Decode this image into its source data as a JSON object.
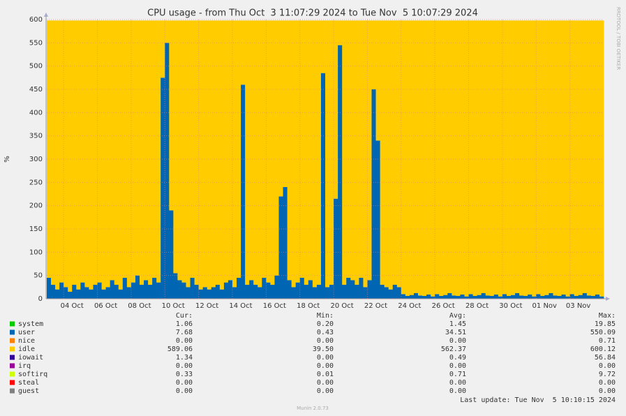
{
  "chart_data": {
    "type": "stacked_area",
    "title": "CPU usage - from Thu Oct  3 11:07:29 2024 to Tue Nov  5 10:07:29 2024",
    "y_label": "%",
    "watermark": "RRDTOOL / TOBI OETIKER",
    "footer": "Munin 2.0.73",
    "last_update": "Last update: Tue Nov  5 10:10:15 2024",
    "ylim": [
      0,
      600
    ],
    "yticks": [
      0,
      50,
      100,
      150,
      200,
      250,
      300,
      350,
      400,
      450,
      500,
      550,
      600
    ],
    "grid": true,
    "categories": [
      null,
      null,
      null,
      null,
      "04 Oct",
      null,
      null,
      null,
      null,
      null,
      null,
      null,
      "06 Oct",
      null,
      null,
      null,
      null,
      null,
      null,
      null,
      "08 Oct",
      null,
      null,
      null,
      null,
      null,
      null,
      null,
      "10 Oct",
      null,
      null,
      null,
      null,
      null,
      null,
      null,
      "12 Oct",
      null,
      null,
      null,
      null,
      null,
      null,
      null,
      "14 Oct",
      null,
      null,
      null,
      null,
      null,
      null,
      null,
      "16 Oct",
      null,
      null,
      null,
      null,
      null,
      null,
      null,
      "18 Oct",
      null,
      null,
      null,
      null,
      null,
      null,
      null,
      "20 Oct",
      null,
      null,
      null,
      null,
      null,
      null,
      null,
      "22 Oct",
      null,
      null,
      null,
      null,
      null,
      null,
      null,
      "24 Oct",
      null,
      null,
      null,
      null,
      null,
      null,
      null,
      "26 Oct",
      null,
      null,
      null,
      null,
      null,
      null,
      null,
      "28 Oct",
      null,
      null,
      null,
      null,
      null,
      null,
      null,
      "30 Oct",
      null,
      null,
      null,
      null,
      null,
      null,
      null,
      "01 Nov",
      null,
      null,
      null,
      null,
      null,
      null,
      null,
      "03 Nov",
      null,
      null,
      null,
      null,
      null,
      null,
      null
    ],
    "series": [
      {
        "name": "user",
        "color": "#0066b3",
        "values": [
          45,
          30,
          20,
          35,
          25,
          15,
          30,
          20,
          35,
          25,
          20,
          30,
          35,
          20,
          25,
          40,
          30,
          20,
          45,
          25,
          35,
          50,
          30,
          40,
          30,
          45,
          35,
          475,
          550,
          190,
          55,
          40,
          35,
          25,
          45,
          30,
          20,
          25,
          20,
          25,
          30,
          20,
          35,
          40,
          25,
          45,
          460,
          30,
          40,
          30,
          25,
          45,
          35,
          30,
          50,
          220,
          240,
          40,
          25,
          35,
          45,
          30,
          40,
          25,
          30,
          485,
          25,
          30,
          215,
          545,
          30,
          45,
          40,
          30,
          45,
          25,
          40,
          450,
          340,
          30,
          25,
          20,
          30,
          25,
          10,
          6,
          8,
          12,
          7,
          6,
          9,
          5,
          10,
          6,
          8,
          12,
          7,
          6,
          9,
          5,
          10,
          6,
          8,
          12,
          7,
          6,
          9,
          5,
          10,
          6,
          8,
          12,
          7,
          6,
          9,
          5,
          10,
          6,
          8,
          12,
          7,
          6,
          9,
          5,
          10,
          6,
          8,
          12,
          7,
          6,
          9,
          5
        ]
      },
      {
        "name": "idle",
        "color": "#ffcc00",
        "values": [
          553,
          568,
          578,
          563,
          573,
          583,
          568,
          578,
          563,
          573,
          578,
          568,
          563,
          578,
          573,
          558,
          568,
          578,
          553,
          573,
          563,
          548,
          568,
          558,
          568,
          553,
          563,
          123,
          48,
          408,
          543,
          558,
          563,
          573,
          553,
          568,
          578,
          573,
          578,
          573,
          568,
          578,
          563,
          558,
          573,
          553,
          138,
          568,
          558,
          568,
          573,
          553,
          563,
          568,
          548,
          378,
          358,
          558,
          573,
          563,
          553,
          568,
          558,
          573,
          568,
          113,
          573,
          568,
          383,
          53,
          568,
          553,
          558,
          568,
          553,
          573,
          558,
          148,
          258,
          568,
          573,
          578,
          568,
          573,
          588,
          592,
          590,
          586,
          591,
          592,
          589,
          593,
          588,
          592,
          590,
          586,
          591,
          592,
          589,
          593,
          588,
          592,
          590,
          586,
          591,
          592,
          589,
          593,
          588,
          592,
          590,
          586,
          591,
          592,
          589,
          593,
          588,
          592,
          590,
          586,
          591,
          592,
          589,
          593,
          588,
          592,
          590,
          586,
          591,
          592,
          589,
          593
        ]
      }
    ],
    "legend": {
      "headers": [
        "Cur:",
        "Min:",
        "Avg:",
        "Max:"
      ],
      "rows": [
        {
          "name": "system",
          "color": "#00cc00",
          "cur": "1.06",
          "min": "0.20",
          "avg": "1.45",
          "max": "19.85"
        },
        {
          "name": "user",
          "color": "#0066b3",
          "cur": "7.68",
          "min": "0.43",
          "avg": "34.51",
          "max": "550.09"
        },
        {
          "name": "nice",
          "color": "#ff8000",
          "cur": "0.00",
          "min": "0.00",
          "avg": "0.00",
          "max": "0.71"
        },
        {
          "name": "idle",
          "color": "#ffcc00",
          "cur": "589.06",
          "min": "39.50",
          "avg": "562.37",
          "max": "600.12"
        },
        {
          "name": "iowait",
          "color": "#330099",
          "cur": "1.34",
          "min": "0.00",
          "avg": "0.49",
          "max": "56.84"
        },
        {
          "name": "irq",
          "color": "#990099",
          "cur": "0.00",
          "min": "0.00",
          "avg": "0.00",
          "max": "0.00"
        },
        {
          "name": "softirq",
          "color": "#ccff00",
          "cur": "0.33",
          "min": "0.01",
          "avg": "0.71",
          "max": "9.72"
        },
        {
          "name": "steal",
          "color": "#ff0000",
          "cur": "0.00",
          "min": "0.00",
          "avg": "0.00",
          "max": "0.00"
        },
        {
          "name": "guest",
          "color": "#808080",
          "cur": "0.00",
          "min": "0.00",
          "avg": "0.00",
          "max": "0.00"
        }
      ]
    }
  }
}
